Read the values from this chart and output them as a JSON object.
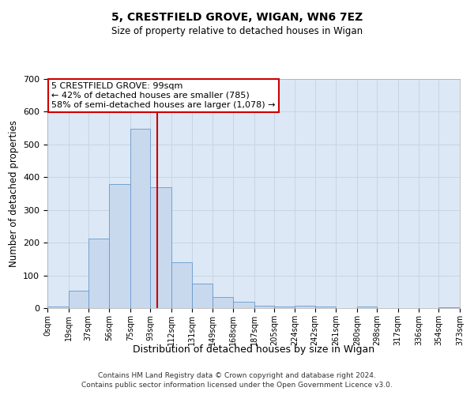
{
  "title": "5, CRESTFIELD GROVE, WIGAN, WN6 7EZ",
  "subtitle": "Size of property relative to detached houses in Wigan",
  "xlabel": "Distribution of detached houses by size in Wigan",
  "ylabel": "Number of detached properties",
  "bin_edges": [
    0,
    19,
    37,
    56,
    75,
    93,
    112,
    131,
    149,
    168,
    187,
    205,
    224,
    242,
    261,
    280,
    298,
    317,
    336,
    354,
    373
  ],
  "bar_heights": [
    5,
    53,
    212,
    380,
    547,
    370,
    140,
    75,
    33,
    20,
    8,
    5,
    8,
    4,
    0,
    5,
    0,
    0,
    0,
    3
  ],
  "bar_color": "#c8d9ee",
  "bar_edgecolor": "#6699cc",
  "grid_color": "#c8d4e3",
  "background_color": "#dce8f5",
  "property_line_x": 99,
  "property_line_color": "#cc0000",
  "annotation_line1": "5 CRESTFIELD GROVE: 99sqm",
  "annotation_line2": "← 42% of detached houses are smaller (785)",
  "annotation_line3": "58% of semi-detached houses are larger (1,078) →",
  "annotation_box_color": "#ffffff",
  "annotation_box_edgecolor": "#cc0000",
  "tick_labels": [
    "0sqm",
    "19sqm",
    "37sqm",
    "56sqm",
    "75sqm",
    "93sqm",
    "112sqm",
    "131sqm",
    "149sqm",
    "168sqm",
    "187sqm",
    "205sqm",
    "224sqm",
    "242sqm",
    "261sqm",
    "280sqm",
    "298sqm",
    "317sqm",
    "336sqm",
    "354sqm",
    "373sqm"
  ],
  "ylim": [
    0,
    700
  ],
  "yticks": [
    0,
    100,
    200,
    300,
    400,
    500,
    600,
    700
  ],
  "footnote1": "Contains HM Land Registry data © Crown copyright and database right 2024.",
  "footnote2": "Contains public sector information licensed under the Open Government Licence v3.0."
}
